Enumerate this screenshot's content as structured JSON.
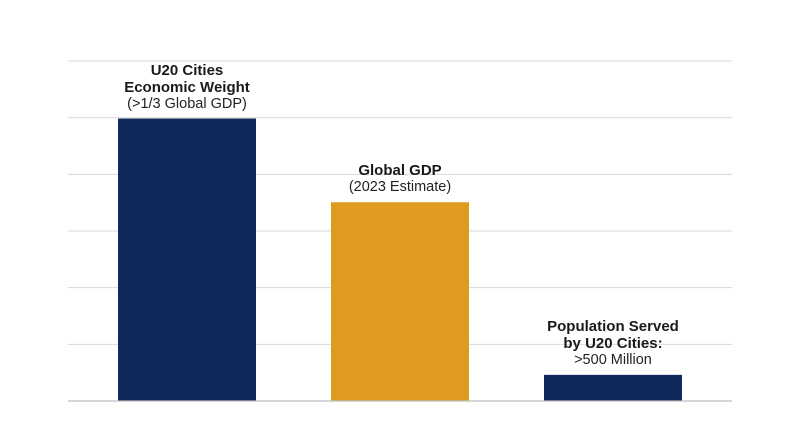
{
  "chart_data": {
    "type": "bar",
    "categories": [
      "U20 Cities Economic Weight",
      "Global GDP",
      "Population Served by U20 Cities"
    ],
    "values": [
      5.4,
      3.8,
      0.5
    ],
    "ylim": [
      0,
      6.5
    ],
    "grid": true,
    "colors": [
      "#10285a",
      "#df9a20",
      "#10285a"
    ],
    "annotations": [
      {
        "lines": [
          {
            "text": "U20 Cities",
            "bold": true
          },
          {
            "text": "Economic Weight",
            "bold": true
          },
          {
            "text": "(>1/3 Global GDP)",
            "bold": false
          }
        ]
      },
      {
        "lines": [
          {
            "text": "Global GDP",
            "bold": true
          },
          {
            "text": "(2023 Estimate)",
            "bold": false
          }
        ]
      },
      {
        "lines": [
          {
            "text": "Population Served",
            "bold": true
          },
          {
            "text": "by U20 Cities:",
            "bold": true
          },
          {
            "text": ">500 Million",
            "bold": false
          }
        ]
      }
    ]
  }
}
